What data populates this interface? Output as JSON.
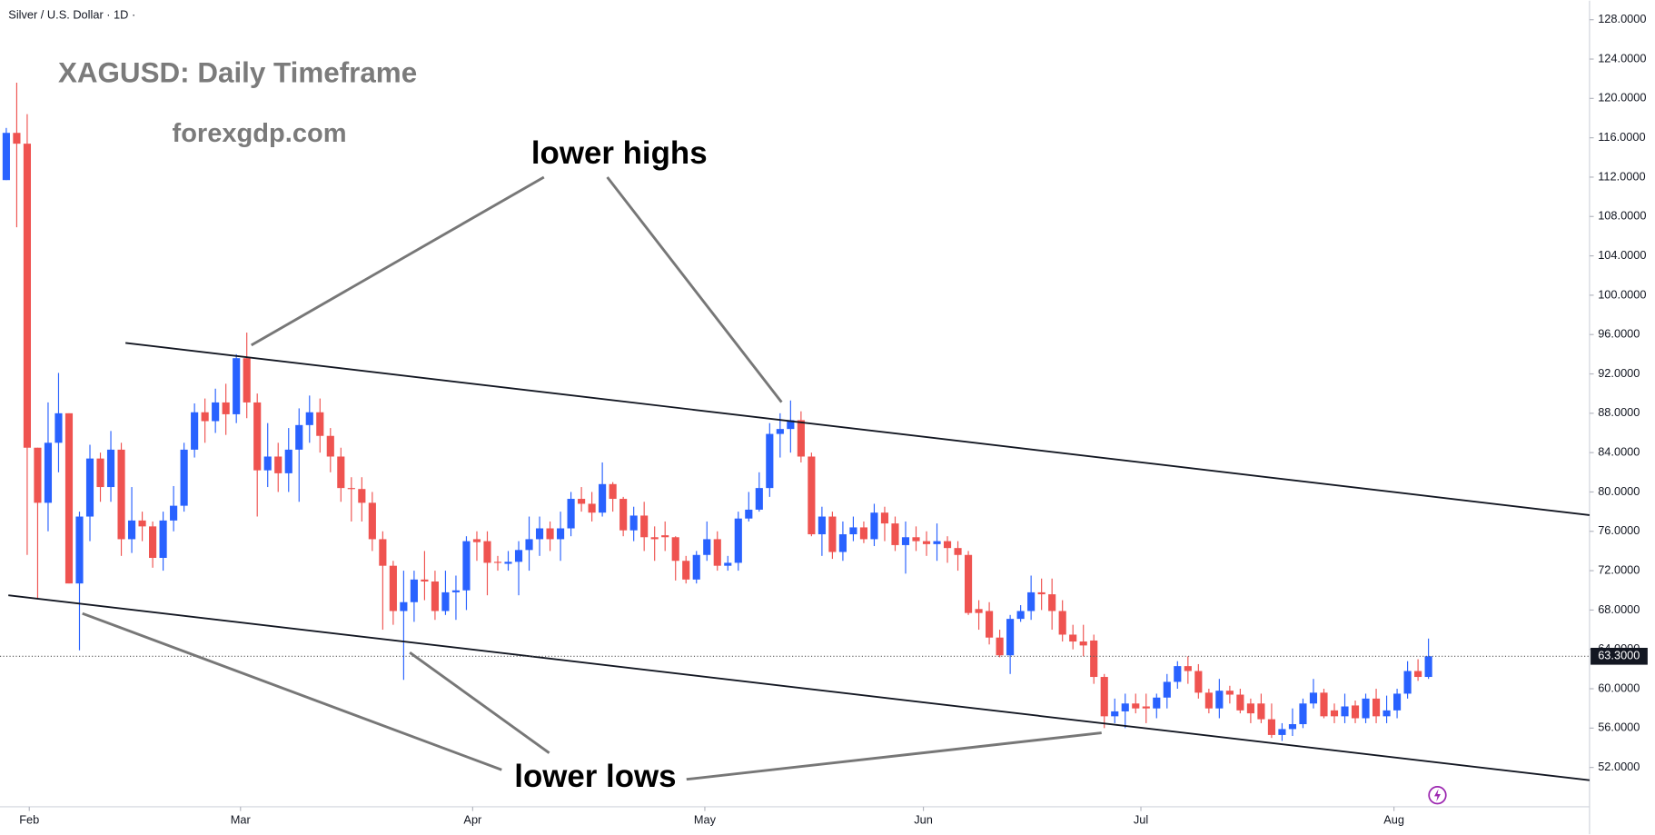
{
  "chart_data": {
    "type": "candlestick",
    "symbol": "Silver / U.S. Dollar · 1D ·",
    "title": "XAGUSD: Daily Timeframe",
    "subtitle": "forexgdp.com",
    "annotations": [
      "lower highs",
      "lower lows"
    ],
    "up_color": "#2962ff",
    "down_color": "#ef5350",
    "grid": false,
    "open": [
      111.7,
      116.5,
      115.4,
      84.5,
      78.9,
      85,
      88,
      70.7,
      77.5,
      83.4,
      80.5,
      84.3,
      75.2,
      77.1,
      76.5,
      73.3,
      77.1,
      78.6,
      84.3,
      88.1,
      87.2,
      89.1,
      87.9,
      93.6,
      89.1,
      82.2,
      83.6,
      81.9,
      84.3,
      86.8,
      88.1,
      85.7,
      83.6,
      80.4,
      80.3,
      78.9,
      75.2,
      72.5,
      67.9,
      68.8,
      71.1,
      70.9,
      67.9,
      69.8,
      70,
      75.2,
      75,
      72.9,
      72.7,
      72.9,
      74.1,
      75.2,
      76.3,
      75.2,
      76.3,
      79.3,
      78.8,
      77.9,
      80.8,
      79.3,
      76.1,
      77.6,
      75.4,
      75.6,
      75.4,
      73,
      71.1,
      73.6,
      75.2,
      72.5,
      72.8,
      77.3,
      78.2,
      80.4,
      85.9,
      86.4,
      87.3,
      83.6,
      75.7,
      77.5,
      73.9,
      75.7,
      76.4,
      75.2,
      77.9,
      76.8,
      74.6,
      75.4,
      75,
      74.7,
      75,
      74.3,
      73.6,
      68.1,
      67.9,
      65.2,
      63.4,
      67.1,
      67.9,
      69.8,
      69.6,
      67.9,
      65.5,
      64.8,
      64.9,
      61.2,
      57.2,
      57.7,
      58.5,
      58.2,
      58,
      59.1,
      60.7,
      62.3,
      61.8,
      59.6,
      58,
      59.8,
      59.4,
      58.5,
      58.5,
      56.9,
      55.3,
      55.9,
      56.4,
      58.5,
      59.6,
      57.8,
      57.2,
      58.3,
      57,
      59,
      57.2,
      57.8,
      59.5,
      61.8,
      61.2
    ],
    "high": [
      117,
      121.6,
      118.4,
      84.5,
      89.1,
      92.1,
      88,
      78,
      84.8,
      84,
      86.2,
      85,
      80.5,
      78,
      77,
      78,
      80.6,
      85,
      89,
      89.5,
      90.5,
      91,
      94,
      96.2,
      90,
      87,
      85,
      86.5,
      88.5,
      89.8,
      89.5,
      86.5,
      84.5,
      81.5,
      81.5,
      80,
      76,
      73,
      72,
      72,
      74,
      72,
      72,
      71.5,
      75.5,
      76,
      76,
      73.5,
      74,
      75,
      77.5,
      77.5,
      77,
      78,
      80,
      80.5,
      80,
      83,
      81,
      79.5,
      78.5,
      79,
      76.5,
      77,
      75.5,
      73.5,
      74,
      77,
      76,
      73.5,
      78,
      80,
      82,
      87,
      88,
      89.3,
      88.2,
      84,
      78.5,
      78,
      77,
      77.5,
      77,
      78.8,
      78.5,
      77.5,
      77,
      76.5,
      76,
      76.8,
      75.5,
      75,
      74,
      69,
      68.8,
      66,
      67.5,
      68.5,
      71.5,
      71.2,
      71.2,
      69,
      66.5,
      66.5,
      65.5,
      61.5,
      59,
      59.5,
      59.5,
      59.5,
      59.5,
      61.5,
      62.8,
      63.3,
      62.5,
      60,
      61,
      60.3,
      60,
      59,
      59.5,
      58.5,
      56.5,
      58,
      59,
      61,
      60,
      58.5,
      59.5,
      58.8,
      59.5,
      60,
      59.3,
      60,
      62.8,
      63,
      65.1
    ],
    "low": [
      111.7,
      106.9,
      73.6,
      69.2,
      76,
      82,
      70.7,
      63.9,
      75,
      79,
      79,
      73.5,
      73.8,
      75,
      72.3,
      72,
      76,
      78,
      83.5,
      85,
      86,
      85.8,
      87,
      87.5,
      77.5,
      80.5,
      80,
      80,
      79,
      85,
      84,
      82,
      79,
      77,
      77,
      74,
      66,
      66.5,
      60.9,
      66.8,
      69,
      67,
      67.5,
      67,
      68,
      73,
      69.5,
      72,
      72,
      69.5,
      72,
      73.5,
      74,
      73,
      75.5,
      78,
      77,
      77.5,
      78,
      75.5,
      75,
      74,
      73,
      74,
      71,
      70.7,
      70.7,
      73,
      72,
      72,
      72,
      77,
      78,
      79.5,
      83.5,
      84,
      83,
      75.5,
      73.5,
      73.2,
      73,
      75,
      74.8,
      74.5,
      75,
      74,
      71.7,
      74,
      73.5,
      73,
      72.8,
      72,
      67.5,
      66,
      64.5,
      63.2,
      61.5,
      66.8,
      67,
      68,
      66,
      64.8,
      64,
      63.3,
      60.5,
      56,
      56.5,
      56,
      57.5,
      56.5,
      57,
      58,
      60,
      60.5,
      59,
      57.5,
      57,
      58.5,
      57.5,
      56.5,
      56.5,
      55,
      54.7,
      55.2,
      56,
      58,
      57,
      56.5,
      56.5,
      56.5,
      56.5,
      56.5,
      56.5,
      57,
      59,
      60.8,
      61
    ],
    "close": [
      116.5,
      115.4,
      84.5,
      78.9,
      85,
      88,
      70.7,
      77.5,
      83.4,
      80.5,
      84.3,
      75.2,
      77.1,
      76.5,
      73.3,
      77.1,
      78.6,
      84.3,
      88.1,
      87.2,
      89.1,
      87.9,
      93.6,
      89.1,
      82.2,
      83.6,
      81.9,
      84.3,
      86.8,
      88.1,
      85.7,
      83.6,
      80.4,
      80.3,
      78.9,
      75.2,
      72.5,
      67.9,
      68.8,
      71.1,
      70.9,
      67.9,
      69.8,
      70,
      75,
      74.9,
      72.8,
      72.8,
      72.9,
      74.1,
      75.2,
      76.3,
      75.2,
      76.3,
      79.3,
      78.8,
      77.9,
      80.8,
      79.3,
      76.1,
      77.6,
      75.4,
      75.2,
      75.4,
      73,
      71.1,
      73.6,
      75.2,
      72.5,
      72.8,
      77.3,
      78.2,
      80.4,
      85.9,
      86.4,
      87.3,
      83.6,
      75.7,
      77.5,
      73.9,
      75.7,
      76.4,
      75.2,
      77.9,
      76.8,
      74.6,
      75.4,
      75,
      74.7,
      75,
      74.3,
      73.6,
      67.7,
      67.7,
      65.2,
      63.4,
      67.1,
      67.9,
      69.8,
      69.6,
      67.9,
      65.5,
      64.8,
      64.4,
      61.2,
      57.2,
      57.7,
      58.5,
      58,
      58,
      59.1,
      60.7,
      62.3,
      61.8,
      59.6,
      58,
      59.8,
      59.4,
      57.8,
      57.5,
      56.9,
      55.3,
      55.9,
      56.4,
      58.5,
      59.6,
      57.2,
      57.2,
      58.2,
      57,
      59,
      57.2,
      57.8,
      59.5,
      61.8,
      61.2,
      63.3
    ],
    "xlim": [
      -0.6,
      151.4
    ],
    "xticks": [
      {
        "value": 2.2,
        "label": "Feb"
      },
      {
        "value": 22.4,
        "label": "Mar"
      },
      {
        "value": 44.6,
        "label": "Apr"
      },
      {
        "value": 66.8,
        "label": "May"
      },
      {
        "value": 87.7,
        "label": "Jun"
      },
      {
        "value": 108.5,
        "label": "Jul"
      },
      {
        "value": 132.7,
        "label": "Aug"
      }
    ],
    "ylim": [
      48,
      129.93
    ],
    "yticks": [
      {
        "value": 52,
        "label": "52.0000"
      },
      {
        "value": 56,
        "label": "56.0000"
      },
      {
        "value": 60,
        "label": "60.0000"
      },
      {
        "value": 64,
        "label": "64.0000"
      },
      {
        "value": 68,
        "label": "68.0000"
      },
      {
        "value": 72,
        "label": "72.0000"
      },
      {
        "value": 76,
        "label": "76.0000"
      },
      {
        "value": 80,
        "label": "80.0000"
      },
      {
        "value": 84,
        "label": "84.0000"
      },
      {
        "value": 88,
        "label": "88.0000"
      },
      {
        "value": 92,
        "label": "92.0000"
      },
      {
        "value": 96,
        "label": "96.0000"
      },
      {
        "value": 100,
        "label": "100.0000"
      },
      {
        "value": 104,
        "label": "104.0000"
      },
      {
        "value": 108,
        "label": "108.0000"
      },
      {
        "value": 112,
        "label": "112.0000"
      },
      {
        "value": 116,
        "label": "116.0000"
      },
      {
        "value": 120,
        "label": "120.0000"
      },
      {
        "value": 124,
        "label": "124.0000"
      },
      {
        "value": 128,
        "label": "128.0000"
      }
    ],
    "last_price": {
      "value": 63.3,
      "label": "63.3000"
    },
    "trendlines": [
      {
        "start": [
          11.4,
          95.15
        ],
        "end": [
          151.4,
          77.65
        ]
      },
      {
        "start": [
          0.2,
          69.5
        ],
        "end": [
          151.4,
          50.7
        ]
      }
    ]
  }
}
